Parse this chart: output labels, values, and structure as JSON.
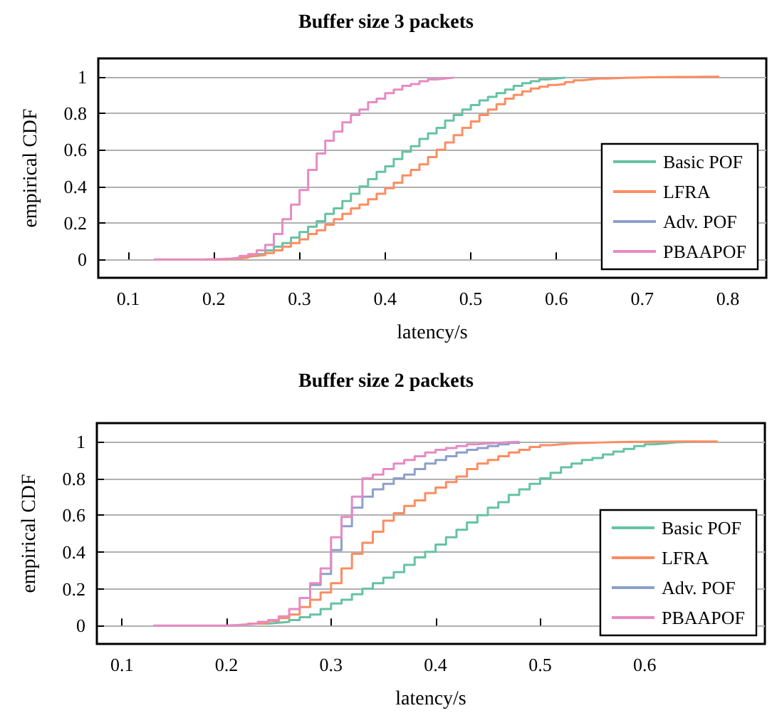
{
  "chart_data": [
    {
      "type": "step",
      "title": "Buffer size 3 packets",
      "xlabel": "latency/s",
      "ylabel": "empirical CDF",
      "xlim": [
        0.065,
        0.845
      ],
      "ylim": [
        -0.1,
        1.1
      ],
      "xticks": [
        0.1,
        0.2,
        0.3,
        0.4,
        0.5,
        0.6,
        0.7,
        0.8
      ],
      "yticks": [
        0,
        0.2,
        0.4,
        0.6,
        0.8,
        1
      ],
      "grid": "y",
      "legend": "bottom right",
      "series": [
        {
          "name": "Basic POF",
          "color": "#66c2a5",
          "x": [
            0.23,
            0.24,
            0.25,
            0.26,
            0.27,
            0.28,
            0.29,
            0.3,
            0.31,
            0.32,
            0.33,
            0.34,
            0.35,
            0.36,
            0.37,
            0.38,
            0.39,
            0.4,
            0.41,
            0.42,
            0.43,
            0.44,
            0.45,
            0.46,
            0.47,
            0.48,
            0.49,
            0.5,
            0.51,
            0.52,
            0.53,
            0.54,
            0.55,
            0.56,
            0.57,
            0.58,
            0.59,
            0.6,
            0.61
          ],
          "values": [
            0.015,
            0.02,
            0.03,
            0.05,
            0.07,
            0.09,
            0.12,
            0.15,
            0.18,
            0.21,
            0.25,
            0.28,
            0.32,
            0.36,
            0.4,
            0.44,
            0.48,
            0.51,
            0.55,
            0.59,
            0.62,
            0.66,
            0.69,
            0.72,
            0.76,
            0.79,
            0.82,
            0.845,
            0.87,
            0.89,
            0.91,
            0.93,
            0.95,
            0.965,
            0.975,
            0.985,
            0.99,
            0.995,
            1
          ]
        },
        {
          "name": "LFRA",
          "color": "#fc8d62",
          "x": [
            0.19,
            0.2,
            0.21,
            0.22,
            0.23,
            0.24,
            0.25,
            0.26,
            0.27,
            0.28,
            0.29,
            0.3,
            0.31,
            0.32,
            0.33,
            0.34,
            0.35,
            0.36,
            0.37,
            0.38,
            0.39,
            0.4,
            0.41,
            0.42,
            0.43,
            0.44,
            0.45,
            0.46,
            0.47,
            0.48,
            0.49,
            0.5,
            0.51,
            0.52,
            0.53,
            0.54,
            0.55,
            0.56,
            0.57,
            0.58,
            0.59,
            0.6,
            0.61,
            0.62,
            0.63,
            0.64,
            0.65,
            0.66,
            0.67,
            0.68,
            0.69,
            0.7,
            0.71,
            0.72,
            0.73,
            0.74,
            0.75,
            0.76,
            0.77,
            0.78,
            0.79
          ],
          "values": [
            0,
            0,
            0.003,
            0.006,
            0.01,
            0.02,
            0.025,
            0.035,
            0.05,
            0.07,
            0.09,
            0.11,
            0.14,
            0.16,
            0.19,
            0.22,
            0.25,
            0.28,
            0.3,
            0.33,
            0.36,
            0.39,
            0.42,
            0.46,
            0.49,
            0.52,
            0.56,
            0.6,
            0.64,
            0.68,
            0.72,
            0.755,
            0.79,
            0.82,
            0.85,
            0.88,
            0.9,
            0.92,
            0.935,
            0.945,
            0.955,
            0.96,
            0.97,
            0.98,
            0.985,
            0.99,
            0.99,
            0.992,
            0.994,
            0.995,
            0.996,
            0.997,
            0.998,
            0.998,
            0.999,
            0.999,
            0.999,
            1,
            1,
            1,
            1
          ]
        },
        {
          "name": "Adv. POF",
          "color": "#8da0cb"
        },
        {
          "name": "PBAAPOF",
          "color": "#e78ac3",
          "x": [
            0.13,
            0.14,
            0.15,
            0.16,
            0.17,
            0.18,
            0.19,
            0.2,
            0.21,
            0.22,
            0.23,
            0.24,
            0.25,
            0.26,
            0.27,
            0.28,
            0.29,
            0.3,
            0.31,
            0.32,
            0.33,
            0.34,
            0.35,
            0.36,
            0.37,
            0.38,
            0.39,
            0.4,
            0.41,
            0.42,
            0.43,
            0.44,
            0.45,
            0.46,
            0.47,
            0.48
          ],
          "values": [
            0,
            0,
            0,
            0,
            0,
            0,
            0,
            0.003,
            0.005,
            0.01,
            0.02,
            0.03,
            0.05,
            0.08,
            0.14,
            0.22,
            0.3,
            0.38,
            0.49,
            0.58,
            0.65,
            0.7,
            0.75,
            0.79,
            0.82,
            0.86,
            0.88,
            0.91,
            0.93,
            0.95,
            0.96,
            0.975,
            0.985,
            0.99,
            0.995,
            1
          ]
        }
      ]
    },
    {
      "type": "step",
      "title": "Buffer size 2 packets",
      "xlabel": "latency/s",
      "ylabel": "empirical CDF",
      "xlim": [
        0.076,
        0.715
      ],
      "ylim": [
        -0.1,
        1.1
      ],
      "xticks": [
        0.1,
        0.2,
        0.3,
        0.4,
        0.5,
        0.6
      ],
      "yticks": [
        0,
        0.2,
        0.4,
        0.6,
        0.8,
        1
      ],
      "grid": "y",
      "legend": "bottom right",
      "series": [
        {
          "name": "Basic POF",
          "color": "#66c2a5",
          "x": [
            0.23,
            0.24,
            0.25,
            0.26,
            0.27,
            0.28,
            0.29,
            0.3,
            0.31,
            0.32,
            0.33,
            0.34,
            0.35,
            0.36,
            0.37,
            0.38,
            0.39,
            0.4,
            0.41,
            0.42,
            0.43,
            0.44,
            0.45,
            0.46,
            0.47,
            0.48,
            0.49,
            0.5,
            0.51,
            0.52,
            0.53,
            0.54,
            0.55,
            0.56,
            0.57,
            0.58,
            0.59,
            0.6,
            0.61,
            0.62,
            0.63,
            0.64,
            0.65
          ],
          "values": [
            0.01,
            0.015,
            0.02,
            0.03,
            0.045,
            0.06,
            0.09,
            0.12,
            0.14,
            0.17,
            0.2,
            0.23,
            0.26,
            0.29,
            0.33,
            0.37,
            0.4,
            0.44,
            0.48,
            0.52,
            0.56,
            0.6,
            0.64,
            0.67,
            0.71,
            0.74,
            0.77,
            0.8,
            0.83,
            0.86,
            0.88,
            0.9,
            0.91,
            0.93,
            0.945,
            0.96,
            0.975,
            0.985,
            0.99,
            0.995,
            0.997,
            0.999,
            1
          ]
        },
        {
          "name": "LFRA",
          "color": "#fc8d62",
          "x": [
            0.22,
            0.23,
            0.24,
            0.25,
            0.26,
            0.27,
            0.28,
            0.29,
            0.3,
            0.31,
            0.32,
            0.33,
            0.34,
            0.35,
            0.36,
            0.37,
            0.38,
            0.39,
            0.4,
            0.41,
            0.42,
            0.43,
            0.44,
            0.45,
            0.46,
            0.47,
            0.48,
            0.49,
            0.5,
            0.51,
            0.52,
            0.53,
            0.54,
            0.55,
            0.56,
            0.57,
            0.58,
            0.59,
            0.6,
            0.61,
            0.62,
            0.63,
            0.64,
            0.65,
            0.66,
            0.67
          ],
          "values": [
            0.01,
            0.015,
            0.025,
            0.04,
            0.06,
            0.1,
            0.14,
            0.18,
            0.23,
            0.31,
            0.39,
            0.45,
            0.51,
            0.57,
            0.61,
            0.65,
            0.68,
            0.72,
            0.75,
            0.78,
            0.81,
            0.85,
            0.88,
            0.9,
            0.92,
            0.94,
            0.955,
            0.97,
            0.98,
            0.985,
            0.99,
            0.992,
            0.994,
            0.995,
            0.996,
            0.997,
            0.998,
            0.998,
            0.999,
            0.999,
            1,
            1,
            1,
            1,
            1,
            1
          ]
        },
        {
          "name": "Adv. POF",
          "color": "#8da0cb",
          "x": [
            0.28,
            0.29,
            0.3,
            0.31,
            0.32,
            0.33,
            0.34,
            0.35,
            0.36,
            0.37,
            0.38,
            0.39,
            0.4,
            0.41,
            0.42,
            0.43,
            0.44,
            0.45,
            0.46,
            0.47,
            0.48
          ],
          "values": [
            0.22,
            0.28,
            0.41,
            0.54,
            0.64,
            0.7,
            0.74,
            0.77,
            0.8,
            0.82,
            0.85,
            0.88,
            0.9,
            0.92,
            0.94,
            0.955,
            0.965,
            0.975,
            0.985,
            0.993,
            1
          ]
        },
        {
          "name": "PBAAPOF",
          "color": "#e78ac3",
          "x": [
            0.13,
            0.14,
            0.15,
            0.16,
            0.17,
            0.18,
            0.19,
            0.2,
            0.21,
            0.22,
            0.23,
            0.24,
            0.25,
            0.26,
            0.27,
            0.28,
            0.29,
            0.3,
            0.31,
            0.32,
            0.33,
            0.34,
            0.35,
            0.36,
            0.37,
            0.38,
            0.39,
            0.4,
            0.41,
            0.42,
            0.43,
            0.44,
            0.45,
            0.46,
            0.47,
            0.48
          ],
          "values": [
            0,
            0,
            0,
            0,
            0,
            0,
            0,
            0.003,
            0.006,
            0.01,
            0.02,
            0.03,
            0.05,
            0.09,
            0.15,
            0.23,
            0.31,
            0.48,
            0.59,
            0.7,
            0.8,
            0.82,
            0.85,
            0.88,
            0.9,
            0.92,
            0.94,
            0.955,
            0.965,
            0.975,
            0.985,
            0.99,
            0.993,
            0.996,
            0.998,
            1
          ]
        }
      ]
    }
  ]
}
